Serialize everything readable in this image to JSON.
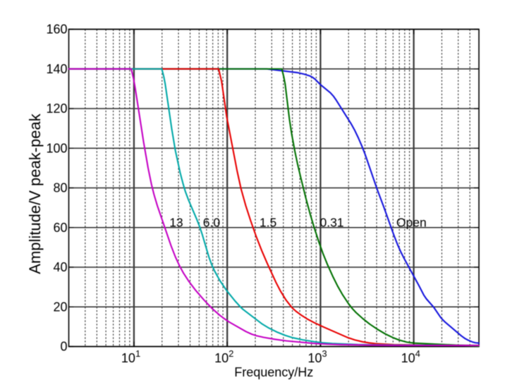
{
  "figure": {
    "xlabel": "Frequency/Hz",
    "ylabel": "Amplitude/V peak-peak",
    "background": "#ffffff"
  },
  "chart_data": {
    "type": "line",
    "x_scale": "log",
    "xlim": [
      2,
      50000
    ],
    "ylim": [
      0,
      160
    ],
    "xlabel": "Frequency/Hz",
    "ylabel": "Amplitude/V peak-peak",
    "grid": true,
    "minor_grid": true,
    "legend_position": "none",
    "x_ticks": [
      {
        "value": 10,
        "base": "10",
        "exp": "1"
      },
      {
        "value": 100,
        "base": "10",
        "exp": "2"
      },
      {
        "value": 1000,
        "base": "10",
        "exp": "3"
      },
      {
        "value": 10000,
        "base": "10",
        "exp": "4"
      }
    ],
    "y_ticks": [
      {
        "value": 0,
        "label": "0"
      },
      {
        "value": 20,
        "label": "20"
      },
      {
        "value": 40,
        "label": "40"
      },
      {
        "value": 60,
        "label": "60"
      },
      {
        "value": 80,
        "label": "80"
      },
      {
        "value": 100,
        "label": "100"
      },
      {
        "value": 120,
        "label": "120"
      },
      {
        "value": 140,
        "label": "140"
      },
      {
        "value": 160,
        "label": "160"
      }
    ],
    "series": [
      {
        "name": "13",
        "color": "#c400c4",
        "points": [
          [
            2,
            140.0
          ],
          [
            9.34,
            140.0
          ],
          [
            9.88,
            135.26
          ],
          [
            10.3,
            130.48
          ],
          [
            12.7,
            103.0
          ],
          [
            14.2,
            89.88
          ],
          [
            15.4,
            81.83
          ],
          [
            16.4,
            76.67
          ],
          [
            17.8,
            71.05
          ],
          [
            25.0,
            50.79
          ],
          [
            27.7,
            45.42
          ],
          [
            30.7,
            40.82
          ],
          [
            34.0,
            36.98
          ],
          [
            38.5,
            33.07
          ],
          [
            45.8,
            28.37
          ],
          [
            56.4,
            23.45
          ],
          [
            69.6,
            18.95
          ],
          [
            83.5,
            15.71
          ],
          [
            95.3,
            13.68
          ],
          [
            106.6,
            12.18
          ],
          [
            159.0,
            7.54
          ],
          [
            183.2,
            6.22
          ],
          [
            206.6,
            5.42
          ],
          [
            246.2,
            4.62
          ],
          [
            322,
            3.67
          ],
          [
            432,
            2.84
          ],
          [
            847,
            1.58
          ],
          [
            1170,
            1.2
          ],
          [
            1650,
            0.95
          ],
          [
            5657,
            0.6
          ],
          [
            50000,
            0.5
          ]
        ]
      },
      {
        "name": "6.0",
        "color": "#00a8a8",
        "points": [
          [
            2,
            140.0
          ],
          [
            19.9,
            140.0
          ],
          [
            20.9,
            136.06
          ],
          [
            21.6,
            132.57
          ],
          [
            25.4,
            109.81
          ],
          [
            27.8,
            98.83
          ],
          [
            31.3,
            87.64
          ],
          [
            33.5,
            82.34
          ],
          [
            35.6,
            78.12
          ],
          [
            38.6,
            73.69
          ],
          [
            46.8,
            64.52
          ],
          [
            50.5,
            60.58
          ],
          [
            54.0,
            56.47
          ],
          [
            63.8,
            44.96
          ],
          [
            68.0,
            41.41
          ],
          [
            73.0,
            38.2
          ],
          [
            83.3,
            33.29
          ],
          [
            98.2,
            28.34
          ],
          [
            120.8,
            23.07
          ],
          [
            138.6,
            19.97
          ],
          [
            147.3,
            18.78
          ],
          [
            237.7,
            11.32
          ],
          [
            280.1,
            9.3
          ],
          [
            338,
            7.38
          ],
          [
            420,
            5.61
          ],
          [
            506,
            4.42
          ],
          [
            645,
            3.37
          ],
          [
            869,
            2.4
          ],
          [
            1056,
            1.91
          ],
          [
            1337,
            1.53
          ],
          [
            2511,
            1.0
          ],
          [
            6400,
            0.72
          ],
          [
            50000,
            0.55
          ]
        ]
      },
      {
        "name": "1.5",
        "color": "#e80000",
        "points": [
          [
            2,
            140.0
          ],
          [
            80.9,
            140.0
          ],
          [
            87.1,
            133.62
          ],
          [
            98.8,
            115.74
          ],
          [
            127.5,
            88.68
          ],
          [
            140.7,
            79.51
          ],
          [
            158.0,
            71.04
          ],
          [
            178.2,
            63.48
          ],
          [
            205.9,
            55.14
          ],
          [
            234.2,
            48.42
          ],
          [
            267.8,
            42.07
          ],
          [
            333,
            32.38
          ],
          [
            373,
            27.92
          ],
          [
            427,
            23.45
          ],
          [
            496,
            19.55
          ],
          [
            546,
            17.77
          ],
          [
            626,
            15.75
          ],
          [
            736,
            13.66
          ],
          [
            865,
            11.95
          ],
          [
            1084,
            9.79
          ],
          [
            1959,
            4.52
          ],
          [
            2331,
            3.34
          ],
          [
            2804,
            2.43
          ],
          [
            3314,
            1.84
          ],
          [
            3903,
            1.46
          ],
          [
            6118,
            0.97
          ],
          [
            13310,
            0.69
          ],
          [
            50000,
            0.55
          ]
        ]
      },
      {
        "name": "0.31",
        "color": "#007000",
        "points": [
          [
            2,
            140.0
          ],
          [
            385,
            140.0
          ],
          [
            404,
            136.02
          ],
          [
            418,
            132.38
          ],
          [
            465,
            114.49
          ],
          [
            492,
            107.01
          ],
          [
            531,
            98.55
          ],
          [
            565,
            92.5
          ],
          [
            614,
            85.27
          ],
          [
            700,
            74.5
          ],
          [
            777,
            66.61
          ],
          [
            854,
            60.14
          ],
          [
            962,
            52.66
          ],
          [
            1065,
            46.86
          ],
          [
            1182,
            41.58
          ],
          [
            1355,
            35.39
          ],
          [
            1528,
            30.47
          ],
          [
            1729,
            26.06
          ],
          [
            1971,
            22.01
          ],
          [
            2177,
            19.32
          ],
          [
            2408,
            17.12
          ],
          [
            2849,
            14.04
          ],
          [
            3372,
            11.31
          ],
          [
            4038,
            8.83
          ],
          [
            4926,
            6.42
          ],
          [
            6054,
            4.39
          ],
          [
            6989,
            3.24
          ],
          [
            8419,
            2.23
          ],
          [
            10161,
            1.7
          ],
          [
            50000,
            0.2
          ]
        ]
      },
      {
        "name": "Open",
        "color": "#1515dd",
        "points": [
          [
            2,
            140.0
          ],
          [
            264.5,
            140.0
          ],
          [
            560,
            138.17
          ],
          [
            672,
            137.34
          ],
          [
            771,
            136.44
          ],
          [
            821,
            135.78
          ],
          [
            874,
            134.85
          ],
          [
            1000,
            132.05
          ],
          [
            1276,
            127.97
          ],
          [
            1383,
            126.14
          ],
          [
            1481,
            124.13
          ],
          [
            2124,
            112.44
          ],
          [
            2314,
            109.3
          ],
          [
            2543,
            105.29
          ],
          [
            2790,
            100.9
          ],
          [
            3021,
            96.71
          ],
          [
            4040,
            79.46
          ],
          [
            4798,
            70.09
          ],
          [
            6139,
            56.05
          ],
          [
            6731,
            51.21
          ],
          [
            7203,
            48.1
          ],
          [
            7873,
            44.47
          ],
          [
            11316,
            30.88
          ],
          [
            12823,
            25.94
          ],
          [
            13683,
            24.0
          ],
          [
            16394,
            19.78
          ],
          [
            19514,
            14.56
          ],
          [
            21530,
            12.45
          ],
          [
            32429,
            5.36
          ],
          [
            35239,
            4.12
          ],
          [
            38239,
            3.22
          ],
          [
            42855,
            2.25
          ],
          [
            45746,
            1.91
          ],
          [
            50000,
            1.7
          ]
        ]
      }
    ],
    "annotations": [
      {
        "text": "13",
        "x": 24,
        "y": 60.6
      },
      {
        "text": "6.0",
        "x": 55,
        "y": 60.6
      },
      {
        "text": "1.5",
        "x": 222,
        "y": 60.6
      },
      {
        "text": "0.31",
        "x": 985,
        "y": 60.6
      },
      {
        "text": "Open",
        "x": 6510,
        "y": 60.6
      }
    ]
  }
}
